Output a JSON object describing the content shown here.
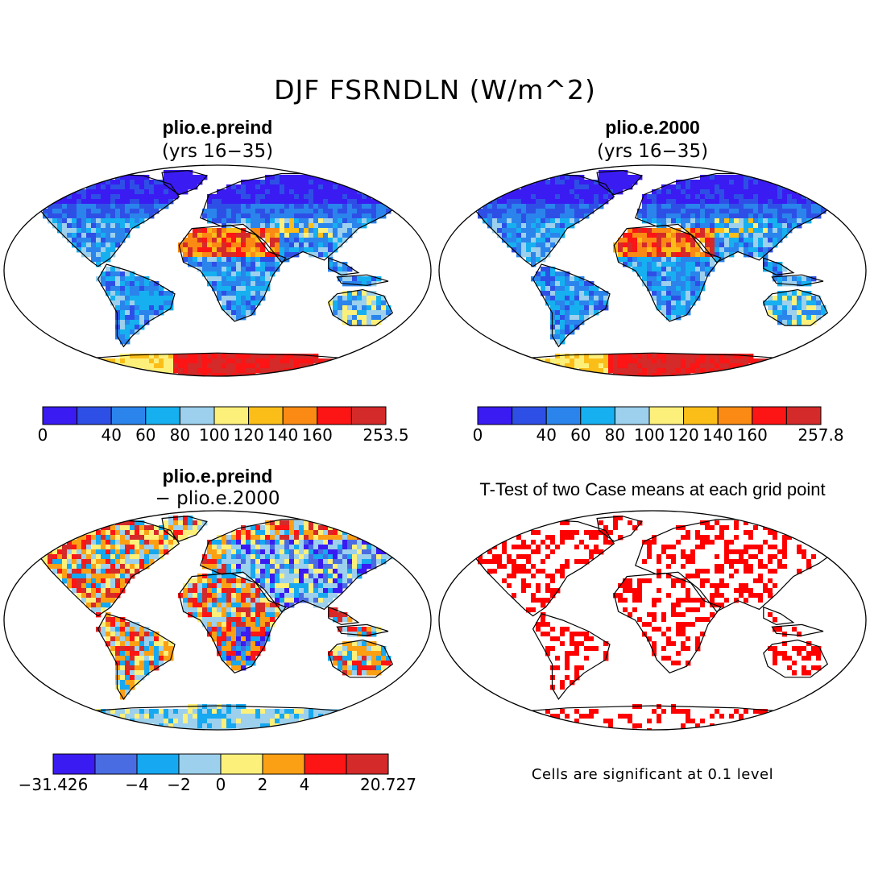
{
  "title": "DJF FSRNDLN (W/m^2)",
  "panels": {
    "top_left": {
      "case": "plio.e.preind",
      "subtitle": "(yrs 16−35)",
      "colorbar": {
        "colors": [
          "#3a1bf2",
          "#2e4fe6",
          "#2a84ec",
          "#16b0f0",
          "#9cd0ec",
          "#fdf07a",
          "#fbbe19",
          "#fa8a14",
          "#fd1414",
          "#d42a2a"
        ],
        "ticks": [
          {
            "label": "0",
            "boundary": 0
          },
          {
            "label": "40",
            "boundary": 2
          },
          {
            "label": "60",
            "boundary": 3
          },
          {
            "label": "80",
            "boundary": 4
          },
          {
            "label": "100",
            "boundary": 5
          },
          {
            "label": "120",
            "boundary": 6
          },
          {
            "label": "140",
            "boundary": 7
          },
          {
            "label": "160",
            "boundary": 8
          },
          {
            "label": "253.5",
            "boundary": 10
          }
        ]
      }
    },
    "top_right": {
      "case": "plio.e.2000",
      "subtitle": "(yrs 16−35)",
      "colorbar": {
        "colors": [
          "#3a1bf2",
          "#2e4fe6",
          "#2a84ec",
          "#16b0f0",
          "#9cd0ec",
          "#fdf07a",
          "#fbbe19",
          "#fa8a14",
          "#fd1414",
          "#d42a2a"
        ],
        "ticks": [
          {
            "label": "0",
            "boundary": 0
          },
          {
            "label": "40",
            "boundary": 2
          },
          {
            "label": "60",
            "boundary": 3
          },
          {
            "label": "80",
            "boundary": 4
          },
          {
            "label": "100",
            "boundary": 5
          },
          {
            "label": "120",
            "boundary": 6
          },
          {
            "label": "140",
            "boundary": 7
          },
          {
            "label": "160",
            "boundary": 8
          },
          {
            "label": "257.8",
            "boundary": 10
          }
        ]
      }
    },
    "bottom_left": {
      "case": "plio.e.preind",
      "subtitle": "− plio.e.2000",
      "colorbar": {
        "colors": [
          "#3a1bf2",
          "#4a6ce2",
          "#16a8f0",
          "#9cd0ec",
          "#fdf07a",
          "#fba014",
          "#fd1414",
          "#d42a2a"
        ],
        "ticks": [
          {
            "label": "−31.426",
            "boundary": 0
          },
          {
            "label": "−4",
            "boundary": 2
          },
          {
            "label": "−2",
            "boundary": 3
          },
          {
            "label": "0",
            "boundary": 4
          },
          {
            "label": "2",
            "boundary": 5
          },
          {
            "label": "4",
            "boundary": 6
          },
          {
            "label": "20.727",
            "boundary": 8
          }
        ]
      }
    },
    "bottom_right": {
      "title": "T-Test of two Case means at each grid point",
      "note": "Cells are significant at 0.1 level",
      "significant_color": "#ff0000"
    }
  },
  "map_palette": {
    "ocean": "#ffffff",
    "coast": "#000000"
  }
}
